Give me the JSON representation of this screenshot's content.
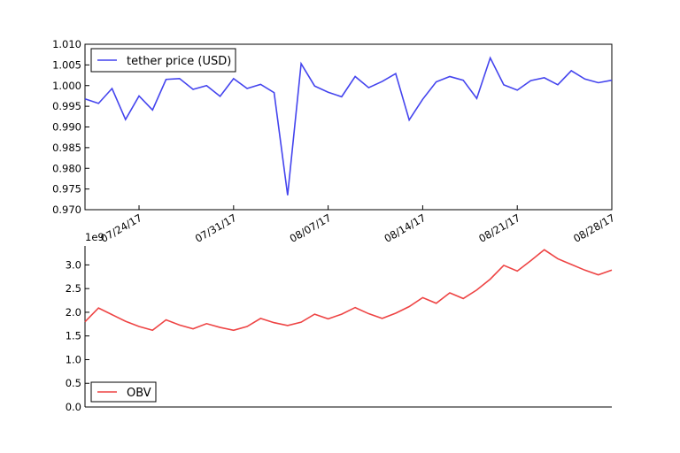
{
  "chart_data": [
    {
      "type": "line",
      "x": [
        "07/20/17",
        "07/21/17",
        "07/22/17",
        "07/23/17",
        "07/24/17",
        "07/25/17",
        "07/26/17",
        "07/27/17",
        "07/28/17",
        "07/29/17",
        "07/30/17",
        "07/31/17",
        "08/01/17",
        "08/02/17",
        "08/03/17",
        "08/04/17",
        "08/05/17",
        "08/06/17",
        "08/07/17",
        "08/08/17",
        "08/09/17",
        "08/10/17",
        "08/11/17",
        "08/12/17",
        "08/13/17",
        "08/14/17",
        "08/15/17",
        "08/16/17",
        "08/17/17",
        "08/18/17",
        "08/19/17",
        "08/20/17",
        "08/21/17",
        "08/22/17",
        "08/23/17",
        "08/24/17",
        "08/25/17",
        "08/26/17",
        "08/27/17",
        "08/28/17"
      ],
      "series": [
        {
          "name": "tether price (USD)",
          "color": "#4444ee",
          "values": [
            0.9968,
            0.9957,
            0.9993,
            0.9918,
            0.9975,
            0.9941,
            1.0015,
            1.0017,
            0.9991,
            1.0,
            0.9974,
            1.0017,
            0.9993,
            1.0003,
            0.9983,
            0.9735,
            1.0053,
            0.9999,
            0.9984,
            0.9973,
            1.0022,
            0.9995,
            1.001,
            1.0029,
            0.9917,
            0.9967,
            1.0009,
            1.0022,
            1.0013,
            0.9969,
            1.0067,
            1.0002,
            0.9989,
            1.0012,
            1.0019,
            1.0002,
            1.0036,
            1.0016,
            1.0007,
            1.0013
          ]
        }
      ],
      "ylim": [
        0.97,
        1.01
      ],
      "yticks": [
        "0.970",
        "0.975",
        "0.980",
        "0.985",
        "0.990",
        "0.995",
        "1.000",
        "1.005",
        "1.010"
      ],
      "xticks": [
        "07/24/17",
        "07/31/17",
        "08/07/17",
        "08/14/17",
        "08/21/17",
        "08/28/17"
      ],
      "legend": "top-left"
    },
    {
      "type": "line",
      "x": [
        "07/20/17",
        "07/21/17",
        "07/22/17",
        "07/23/17",
        "07/24/17",
        "07/25/17",
        "07/26/17",
        "07/27/17",
        "07/28/17",
        "07/29/17",
        "07/30/17",
        "07/31/17",
        "08/01/17",
        "08/02/17",
        "08/03/17",
        "08/04/17",
        "08/05/17",
        "08/06/17",
        "08/07/17",
        "08/08/17",
        "08/09/17",
        "08/10/17",
        "08/11/17",
        "08/12/17",
        "08/13/17",
        "08/14/17",
        "08/15/17",
        "08/16/17",
        "08/17/17",
        "08/18/17",
        "08/19/17",
        "08/20/17",
        "08/21/17",
        "08/22/17",
        "08/23/17",
        "08/24/17",
        "08/25/17",
        "08/26/17",
        "08/27/17",
        "08/28/17"
      ],
      "series": [
        {
          "name": "OBV",
          "color": "#ee4444",
          "values": [
            1.8,
            2.09,
            1.95,
            1.81,
            1.7,
            1.62,
            1.84,
            1.73,
            1.65,
            1.76,
            1.68,
            1.62,
            1.7,
            1.87,
            1.78,
            1.72,
            1.79,
            1.96,
            1.86,
            1.96,
            2.1,
            1.97,
            1.87,
            1.98,
            2.12,
            2.31,
            2.19,
            2.41,
            2.29,
            2.47,
            2.7,
            2.99,
            2.87,
            3.09,
            3.32,
            3.13,
            3.01,
            2.89,
            2.79,
            2.89
          ]
        }
      ],
      "ylim": [
        0.0,
        3.4
      ],
      "yticks": [
        "0.0",
        "0.5",
        "1.0",
        "1.5",
        "2.0",
        "2.5",
        "3.0"
      ],
      "y_multiplier": "1e9",
      "legend": "bottom-left"
    }
  ]
}
